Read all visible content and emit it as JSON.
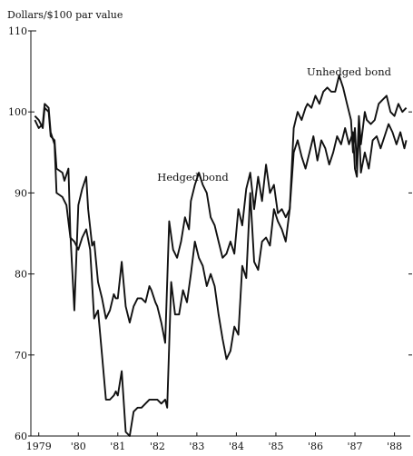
{
  "chart_data": {
    "type": "line",
    "title": "",
    "ylabel": "Dollars/$100 par value",
    "xlabel": "",
    "xlim": [
      1979.0,
      1988.6
    ],
    "ylim": [
      60,
      110
    ],
    "y_ticks": [
      60,
      70,
      80,
      90,
      100,
      110
    ],
    "x_ticks": [
      {
        "label": "1979",
        "value": 1979.2
      },
      {
        "label": "'80",
        "value": 1980.2
      },
      {
        "label": "'81",
        "value": 1981.2
      },
      {
        "label": "'82",
        "value": 1982.2
      },
      {
        "label": "'83",
        "value": 1983.2
      },
      {
        "label": "'84",
        "value": 1984.2
      },
      {
        "label": "'85",
        "value": 1985.2
      },
      {
        "label": "'86",
        "value": 1986.2
      },
      {
        "label": "'87",
        "value": 1987.2
      },
      {
        "label": "'88",
        "value": 1988.2
      }
    ],
    "grid": false,
    "legend": "none",
    "annotations": [
      {
        "text": "Hedged bond",
        "x": 1983.1,
        "y": 91.5
      },
      {
        "text": "Unhedged bond",
        "x": 1987.05,
        "y": 104.5
      }
    ],
    "series": [
      {
        "name": "Hedged bond",
        "x": [
          1979.1,
          1979.2,
          1979.3,
          1979.35,
          1979.45,
          1979.5,
          1979.6,
          1979.65,
          1979.8,
          1979.85,
          1979.95,
          1980.0,
          1980.1,
          1980.2,
          1980.3,
          1980.4,
          1980.45,
          1980.55,
          1980.6,
          1980.7,
          1980.8,
          1980.9,
          1981.0,
          1981.1,
          1981.15,
          1981.2,
          1981.3,
          1981.4,
          1981.5,
          1981.6,
          1981.7,
          1981.8,
          1981.9,
          1982.0,
          1982.05,
          1982.15,
          1982.2,
          1982.3,
          1982.4,
          1982.5,
          1982.6,
          1982.7,
          1982.8,
          1982.9,
          1983.0,
          1983.05,
          1983.15,
          1983.25,
          1983.35,
          1983.45,
          1983.55,
          1983.65,
          1983.75,
          1983.85,
          1983.95,
          1984.05,
          1984.15,
          1984.25,
          1984.35,
          1984.45,
          1984.55,
          1984.65,
          1984.75,
          1984.85,
          1984.95,
          1985.05,
          1985.15,
          1985.25,
          1985.35,
          1985.45,
          1985.55,
          1985.65,
          1985.75,
          1985.85,
          1985.95,
          1986.0,
          1986.1,
          1986.2,
          1986.3,
          1986.4,
          1986.5,
          1986.6,
          1986.7,
          1986.8,
          1986.9,
          1987.0,
          1987.1,
          1987.15,
          1987.2,
          1987.25,
          1987.3,
          1987.35,
          1987.4,
          1987.45,
          1987.5,
          1987.6,
          1987.7,
          1987.8,
          1987.9,
          1988.0,
          1988.1,
          1988.2,
          1988.3,
          1988.4,
          1988.5
        ],
        "values": [
          99.5,
          99.0,
          98.0,
          100.5,
          100.0,
          97.0,
          96.5,
          93.0,
          92.5,
          91.5,
          93.0,
          85.0,
          75.5,
          88.5,
          90.5,
          92.0,
          88.0,
          83.5,
          84.0,
          79.0,
          77.0,
          74.5,
          75.5,
          77.5,
          77.0,
          77.0,
          81.5,
          76.0,
          74.0,
          76.0,
          77.0,
          77.0,
          76.5,
          78.5,
          78.0,
          76.5,
          76.0,
          74.0,
          71.5,
          86.5,
          83.0,
          82.0,
          84.0,
          87.0,
          85.5,
          89.0,
          91.0,
          92.5,
          91.0,
          90.0,
          87.0,
          86.0,
          84.0,
          82.0,
          82.5,
          84.0,
          82.5,
          88.0,
          86.0,
          90.5,
          92.5,
          88.0,
          92.0,
          89.0,
          93.5,
          90.0,
          91.0,
          87.5,
          88.0,
          87.0,
          88.0,
          98.0,
          100.0,
          99.0,
          100.5,
          101.0,
          100.5,
          102.0,
          101.0,
          102.5,
          103.0,
          102.5,
          102.5,
          104.5,
          103.0,
          101.0,
          99.0,
          95.0,
          98.0,
          93.0,
          99.5,
          96.0,
          98.0,
          100.0,
          99.0,
          98.5,
          99.0,
          101.0,
          101.5,
          102.0,
          100.0,
          99.5,
          101.0,
          100.0,
          100.5
        ]
      },
      {
        "name": "Unhedged bond",
        "x": [
          1979.1,
          1979.2,
          1979.3,
          1979.35,
          1979.45,
          1979.5,
          1979.6,
          1979.65,
          1979.8,
          1979.9,
          1980.0,
          1980.1,
          1980.2,
          1980.3,
          1980.4,
          1980.5,
          1980.6,
          1980.7,
          1980.8,
          1980.9,
          1981.0,
          1981.1,
          1981.15,
          1981.2,
          1981.3,
          1981.4,
          1981.5,
          1981.6,
          1981.7,
          1981.8,
          1981.9,
          1982.0,
          1982.1,
          1982.2,
          1982.3,
          1982.4,
          1982.45,
          1982.55,
          1982.65,
          1982.75,
          1982.85,
          1982.95,
          1983.05,
          1983.15,
          1983.25,
          1983.35,
          1983.45,
          1983.55,
          1983.65,
          1983.75,
          1983.85,
          1983.95,
          1984.05,
          1984.15,
          1984.25,
          1984.35,
          1984.45,
          1984.55,
          1984.65,
          1984.75,
          1984.85,
          1984.95,
          1985.05,
          1985.15,
          1985.25,
          1985.35,
          1985.45,
          1985.55,
          1985.65,
          1985.75,
          1985.85,
          1985.95,
          1986.05,
          1986.15,
          1986.25,
          1986.35,
          1986.45,
          1986.55,
          1986.65,
          1986.75,
          1986.85,
          1986.95,
          1987.05,
          1987.15,
          1987.2,
          1987.25,
          1987.3,
          1987.35,
          1987.45,
          1987.55,
          1987.65,
          1987.75,
          1987.85,
          1987.95,
          1988.05,
          1988.15,
          1988.25,
          1988.35,
          1988.45,
          1988.5
        ],
        "values": [
          99.0,
          98.0,
          98.5,
          101.0,
          100.5,
          97.5,
          96.0,
          90.0,
          89.5,
          88.5,
          84.5,
          84.0,
          83.0,
          84.5,
          85.5,
          83.0,
          74.5,
          75.5,
          70.0,
          64.5,
          64.5,
          65.0,
          65.5,
          65.0,
          68.0,
          60.5,
          60.0,
          63.0,
          63.5,
          63.5,
          64.0,
          64.5,
          64.5,
          64.5,
          64.0,
          64.5,
          63.5,
          79.0,
          75.0,
          75.0,
          78.0,
          76.5,
          80.0,
          84.0,
          82.0,
          81.0,
          78.5,
          80.0,
          78.5,
          75.0,
          72.0,
          69.5,
          70.5,
          73.5,
          72.5,
          81.0,
          79.5,
          90.0,
          81.5,
          80.5,
          84.0,
          84.5,
          83.5,
          88.0,
          86.5,
          85.5,
          84.0,
          88.0,
          95.0,
          96.5,
          94.5,
          93.0,
          95.0,
          97.0,
          94.0,
          96.5,
          95.5,
          93.5,
          95.0,
          97.0,
          96.0,
          98.0,
          96.0,
          97.5,
          93.0,
          92.0,
          98.5,
          92.5,
          95.0,
          93.0,
          96.5,
          97.0,
          95.5,
          97.0,
          98.5,
          97.5,
          96.0,
          97.5,
          95.5,
          96.5
        ]
      }
    ]
  }
}
